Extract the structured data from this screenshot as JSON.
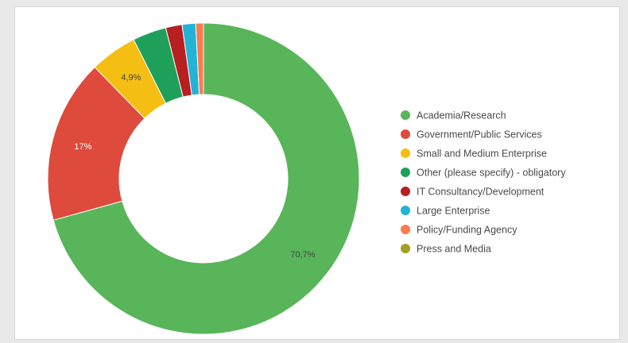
{
  "chart_data": {
    "type": "pie",
    "donut": true,
    "title": "",
    "legend_position": "right",
    "slices": [
      {
        "name": "Academia/Research",
        "value": 70.7,
        "label": "70,7%",
        "color": "#58b55a"
      },
      {
        "name": "Government/Public Services",
        "value": 17.0,
        "label": "17%",
        "color": "#de4a3c"
      },
      {
        "name": "Small and Medium Enterprise",
        "value": 4.9,
        "label": "4,9%",
        "color": "#f4bf12"
      },
      {
        "name": "Other (please specify) - obligatory",
        "value": 3.5,
        "label": "",
        "color": "#1fa05a"
      },
      {
        "name": "IT Consultancy/Development",
        "value": 1.7,
        "label": "",
        "color": "#b71f20"
      },
      {
        "name": "Large Enterprise",
        "value": 1.4,
        "label": "",
        "color": "#23b3d4"
      },
      {
        "name": "Policy/Funding Agency",
        "value": 0.8,
        "label": "",
        "color": "#ff7a4e"
      },
      {
        "name": "Press and Media",
        "value": 0.0,
        "label": "",
        "color": "#a19f20"
      }
    ]
  }
}
